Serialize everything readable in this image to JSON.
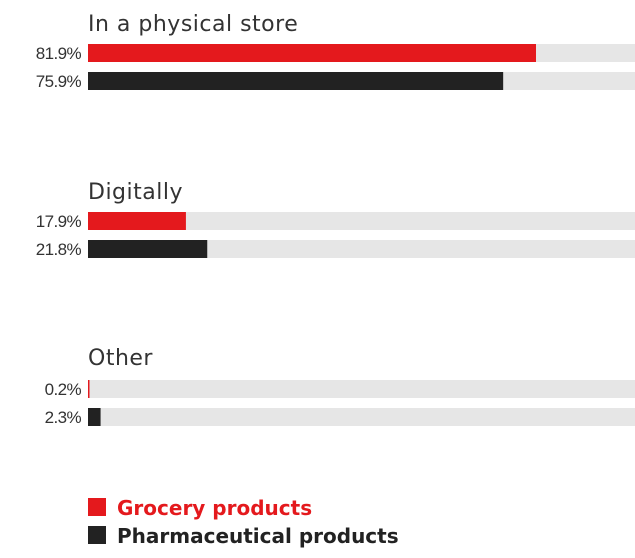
{
  "chart_data": {
    "type": "bar",
    "orientation": "horizontal",
    "categories": [
      "In a physical store",
      "Digitally",
      "Other"
    ],
    "series": [
      {
        "name": "Grocery products",
        "values": [
          81.9,
          17.9,
          0.2
        ],
        "labels": [
          "81.9%",
          "17.9%",
          "0.2%"
        ],
        "color": "#e4191d"
      },
      {
        "name": "Pharmaceutical products",
        "values": [
          75.9,
          21.8,
          2.3
        ],
        "labels": [
          "75.9%",
          "21.8%",
          "2.3%"
        ],
        "color": "#222222"
      }
    ],
    "xlim": [
      0,
      100
    ],
    "track_color": "#e6e6e6",
    "grid": false,
    "legend_position": "bottom-left",
    "title": "",
    "xlabel": "",
    "ylabel": ""
  }
}
